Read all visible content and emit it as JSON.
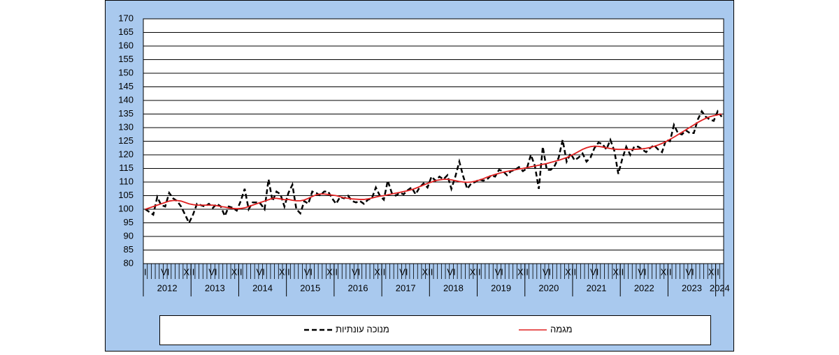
{
  "chart_data": {
    "type": "line",
    "categories": [
      "I",
      null,
      null,
      null,
      null,
      "VI",
      null,
      null,
      null,
      null,
      null,
      "XII",
      null,
      null,
      null,
      null,
      null,
      "VI",
      null,
      null,
      null,
      null,
      null,
      "XII",
      null,
      null,
      null,
      null,
      null,
      "VI",
      null,
      null,
      null,
      null,
      null,
      "XII",
      null,
      null,
      null,
      null,
      null,
      "VI",
      null,
      null,
      null,
      null,
      null,
      "XII",
      null,
      null,
      null,
      null,
      null,
      "VI",
      null,
      null,
      null,
      null,
      null,
      "XII",
      null,
      null,
      null,
      null,
      null,
      "VI",
      null,
      null,
      null,
      null,
      null,
      "XII",
      null,
      null,
      null,
      null,
      null,
      "VI",
      null,
      null,
      null,
      null,
      null,
      "XII",
      null,
      null,
      null,
      null,
      null,
      "VI",
      null,
      null,
      null,
      null,
      null,
      "XII",
      null,
      null,
      null,
      null,
      null,
      "VI",
      null,
      null,
      null,
      null,
      null,
      "XII",
      null,
      null,
      null,
      null,
      null,
      "VI",
      null,
      null,
      null,
      null,
      null,
      "XII",
      null,
      null,
      null,
      null,
      null,
      "VI",
      null,
      null,
      null,
      null,
      null,
      "XII",
      null,
      null,
      null,
      null,
      null,
      "VI",
      null,
      null,
      null,
      null,
      null,
      "XII",
      null,
      null
    ],
    "years": [
      "2012",
      "2013",
      "2014",
      "2015",
      "2016",
      "2017",
      "2018",
      "2019",
      "2020",
      "2021",
      "2022",
      "2023",
      "2024"
    ],
    "series": [
      {
        "name": "מנוכה עונתיות",
        "color": "#000000",
        "dash": true,
        "values": [
          100,
          99,
          98,
          104.5,
          101.5,
          101,
          106,
          104,
          103,
          101,
          98,
          95,
          98,
          102,
          101.5,
          101,
          102,
          100.5,
          102,
          101,
          97.5,
          101,
          100.5,
          99.5,
          103,
          107.5,
          100,
          102.5,
          102.5,
          102,
          100,
          111,
          103,
          106.5,
          105.5,
          101,
          106,
          109,
          100,
          98.5,
          103,
          102,
          106.5,
          106,
          105,
          106.5,
          106.5,
          104,
          102,
          104.5,
          104,
          105,
          103,
          102.5,
          103,
          102,
          103.5,
          104,
          108,
          105,
          103.5,
          110.5,
          106,
          105,
          106,
          105.5,
          107,
          108,
          105.5,
          108,
          109.5,
          108,
          112,
          110.5,
          112,
          111,
          112.5,
          107.5,
          112,
          117.5,
          112,
          107.5,
          109.5,
          110,
          111,
          110.5,
          111,
          112.5,
          112,
          114.5,
          114,
          112.5,
          114,
          114.5,
          115.5,
          114,
          115,
          120,
          116,
          107.5,
          123,
          114.5,
          114.5,
          116,
          119,
          125.5,
          117.5,
          120.5,
          118,
          119,
          120.5,
          117.5,
          119,
          122.5,
          124.5,
          124,
          122,
          125.5,
          121.5,
          113,
          118.5,
          123,
          120,
          123,
          123,
          122,
          121,
          122.5,
          123.5,
          122,
          121,
          125.5,
          125,
          131,
          128,
          127.5,
          129,
          128,
          128,
          133,
          136,
          134,
          133,
          132.5,
          136,
          134
        ]
      },
      {
        "name": "מגמה",
        "color": "#e02020",
        "dash": false,
        "values": [
          100,
          100.5,
          101,
          101.5,
          102,
          102.5,
          103,
          103.2,
          103.2,
          103,
          102.5,
          102,
          101.7,
          101.5,
          101.5,
          101.5,
          101.5,
          101.5,
          101.3,
          101,
          100.8,
          100.5,
          100.3,
          100.2,
          100.3,
          100.5,
          101,
          101.5,
          102,
          102.5,
          103,
          103.5,
          104,
          104,
          103.8,
          103.5,
          103.6,
          103.3,
          103.1,
          103.1,
          103.4,
          104,
          104.7,
          105.3,
          105.6,
          105.6,
          105.4,
          105.2,
          105,
          104.6,
          104.2,
          104,
          103.8,
          103.7,
          103.6,
          103.6,
          103.8,
          104.1,
          104.5,
          104.8,
          105,
          105.3,
          105.6,
          105.9,
          106.2,
          106.5,
          106.8,
          107.2,
          107.7,
          108.3,
          108.9,
          109.5,
          110,
          110.5,
          110.8,
          111,
          111,
          110.8,
          110.5,
          110.2,
          110,
          109.9,
          110,
          110.3,
          110.7,
          111.2,
          111.8,
          112.3,
          112.8,
          113.2,
          113.6,
          113.9,
          114.2,
          114.5,
          114.8,
          115,
          115.3,
          115.6,
          115.9,
          116.2,
          116.5,
          116.8,
          117.2,
          117.6,
          118,
          118.5,
          119,
          119.7,
          120.4,
          121.2,
          122,
          122.6,
          123,
          123.2,
          123.1,
          122.9,
          122.6,
          122.3,
          122.1,
          122,
          122,
          122,
          122,
          122,
          122.1,
          122.2,
          122.4,
          122.7,
          123.1,
          123.6,
          124.2,
          124.9,
          125.7,
          126.5,
          127.4,
          128.3,
          129.2,
          130.1,
          131,
          131.9,
          132.7,
          133.4,
          134,
          134.4,
          134.7,
          135
        ]
      }
    ],
    "ylim": [
      80,
      170
    ],
    "yticks": [
      80,
      85,
      90,
      95,
      100,
      105,
      110,
      115,
      120,
      125,
      130,
      135,
      140,
      145,
      150,
      155,
      160,
      165,
      170
    ],
    "grid": true
  }
}
